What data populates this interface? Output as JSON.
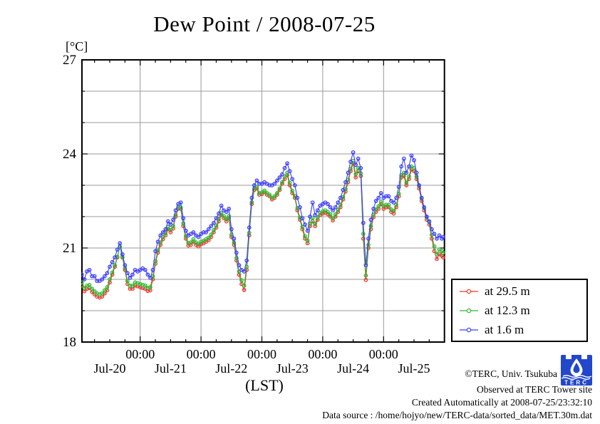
{
  "title": "Dew Point / 2008-07-25",
  "y_axis": {
    "unit_label": "[°C]"
  },
  "x_axis": {
    "label": "(LST)"
  },
  "legend": {
    "items": [
      {
        "label": "at 29.5 m",
        "color": "#e8372c"
      },
      {
        "label": "at 12.3 m",
        "color": "#2eb82e"
      },
      {
        "label": "at 1.6 m",
        "color": "#3c3cff"
      }
    ]
  },
  "footer": {
    "copyright": "©TERC, Univ. Tsukuba",
    "observed": "Observed at TERC Tower site",
    "created": "Created Automatically at 2008-07-25/23:32:10",
    "datasource": "Data source : /home/hojyo/new/TERC-data/sorted_data/MET.30m.dat",
    "logo_text": "TERC"
  },
  "chart_data": {
    "type": "line",
    "title": "Dew Point / 2008-07-25",
    "xlabel": "(LST)",
    "ylabel": "[°C]",
    "ylim": [
      18,
      27
    ],
    "y_ticks_labeled": [
      18,
      21,
      24,
      27
    ],
    "y_grid_step": 1,
    "x_range_hours": [
      1,
      144
    ],
    "x_minor_tick_hours": 6,
    "boundary_tick_label": "00:00",
    "day_labels": [
      "Jul-20",
      "Jul-21",
      "Jul-22",
      "Jul-23",
      "Jul-24",
      "Jul-25"
    ],
    "grid": true,
    "legend_position": "outside-right-bottom",
    "x_hours": [
      1,
      2,
      3,
      4,
      5,
      6,
      7,
      8,
      9,
      10,
      11,
      12,
      13,
      14,
      15,
      16,
      17,
      18,
      19,
      20,
      21,
      22,
      23,
      24,
      25,
      26,
      27,
      28,
      29,
      30,
      31,
      32,
      33,
      34,
      35,
      36,
      37,
      38,
      39,
      40,
      41,
      42,
      43,
      44,
      45,
      46,
      47,
      48,
      49,
      50,
      51,
      52,
      53,
      54,
      55,
      56,
      57,
      58,
      59,
      60,
      61,
      62,
      63,
      64,
      65,
      66,
      67,
      68,
      69,
      70,
      71,
      72,
      73,
      74,
      75,
      76,
      77,
      78,
      79,
      80,
      81,
      82,
      83,
      84,
      85,
      86,
      87,
      88,
      89,
      90,
      91,
      92,
      93,
      94,
      95,
      96,
      97,
      98,
      99,
      100,
      101,
      102,
      103,
      104,
      105,
      106,
      107,
      108,
      109,
      110,
      111,
      112,
      113,
      114,
      115,
      116,
      117,
      118,
      119,
      120,
      121,
      122,
      123,
      124,
      125,
      126,
      127,
      128,
      129,
      130,
      131,
      132,
      133,
      134,
      135,
      136,
      137,
      138,
      139,
      140,
      141,
      142,
      143,
      143.5
    ],
    "series": [
      {
        "name": "at 29.5 m",
        "height_m": 29.5,
        "color": "#e8372c",
        "values": [
          19.8,
          19.62,
          19.7,
          19.72,
          19.6,
          19.52,
          19.45,
          19.42,
          19.45,
          19.55,
          19.65,
          19.9,
          20.15,
          20.4,
          20.7,
          21.05,
          20.7,
          20.3,
          19.85,
          19.7,
          19.7,
          19.8,
          19.78,
          19.75,
          19.72,
          19.7,
          19.63,
          19.65,
          20.0,
          20.5,
          20.85,
          21.1,
          21.28,
          21.4,
          21.6,
          21.5,
          21.62,
          22.0,
          22.25,
          22.25,
          21.7,
          21.3,
          21.08,
          21.1,
          21.2,
          21.1,
          21.05,
          21.12,
          21.15,
          21.2,
          21.25,
          21.35,
          21.5,
          21.65,
          21.85,
          22.05,
          21.95,
          21.85,
          21.95,
          21.35,
          21.1,
          20.6,
          20.15,
          19.85,
          19.66,
          20.3,
          21.4,
          22.4,
          22.85,
          22.9,
          22.7,
          22.72,
          22.78,
          22.7,
          22.65,
          22.55,
          22.6,
          22.7,
          22.85,
          23.05,
          23.2,
          23.32,
          23.0,
          22.75,
          22.6,
          22.2,
          21.9,
          21.6,
          21.3,
          21.15,
          21.7,
          21.85,
          21.7,
          21.9,
          22.05,
          22.1,
          22.12,
          22.08,
          22.0,
          21.88,
          22.0,
          22.15,
          22.3,
          22.55,
          22.8,
          23.1,
          23.45,
          23.7,
          23.25,
          23.45,
          23.3,
          21.3,
          19.98,
          21.0,
          21.6,
          21.98,
          22.15,
          22.25,
          22.4,
          22.25,
          22.3,
          22.3,
          22.15,
          22.1,
          22.3,
          22.65,
          23.25,
          23.3,
          23.0,
          23.2,
          23.5,
          23.45,
          23.2,
          22.9,
          22.5,
          22.2,
          21.9,
          21.75,
          21.3,
          20.9,
          20.65,
          20.8,
          20.75,
          20.7
        ]
      },
      {
        "name": "at 12.3 m",
        "height_m": 12.3,
        "color": "#2eb82e",
        "values": [
          19.9,
          19.72,
          19.8,
          19.82,
          19.7,
          19.62,
          19.55,
          19.52,
          19.55,
          19.65,
          19.75,
          20.0,
          20.22,
          20.45,
          20.72,
          21.05,
          20.72,
          20.35,
          19.95,
          19.8,
          19.8,
          19.9,
          19.88,
          19.85,
          19.82,
          19.8,
          19.73,
          19.75,
          20.1,
          20.58,
          20.92,
          21.18,
          21.35,
          21.47,
          21.67,
          21.57,
          21.7,
          22.05,
          22.3,
          22.3,
          21.78,
          21.38,
          21.16,
          21.18,
          21.28,
          21.18,
          21.13,
          21.2,
          21.23,
          21.28,
          21.33,
          21.43,
          21.57,
          21.72,
          21.92,
          22.12,
          22.02,
          21.92,
          22.02,
          21.42,
          21.17,
          20.68,
          20.25,
          19.97,
          19.8,
          20.4,
          21.48,
          22.46,
          22.9,
          22.95,
          22.75,
          22.77,
          22.83,
          22.75,
          22.7,
          22.6,
          22.65,
          22.75,
          22.9,
          23.1,
          23.28,
          23.4,
          23.08,
          22.82,
          22.66,
          22.27,
          21.97,
          21.67,
          21.38,
          21.23,
          21.78,
          21.95,
          21.78,
          21.98,
          22.12,
          22.17,
          22.2,
          22.15,
          22.07,
          21.95,
          22.07,
          22.22,
          22.38,
          22.62,
          22.88,
          23.18,
          23.52,
          23.78,
          23.35,
          23.55,
          23.38,
          21.45,
          20.12,
          21.1,
          21.7,
          22.06,
          22.23,
          22.33,
          22.48,
          22.33,
          22.38,
          22.38,
          22.23,
          22.18,
          22.38,
          22.73,
          23.32,
          23.4,
          23.08,
          23.28,
          23.6,
          23.55,
          23.28,
          22.98,
          22.58,
          22.28,
          21.98,
          21.83,
          21.42,
          21.05,
          20.8,
          20.95,
          20.9,
          20.85
        ]
      },
      {
        "name": "at 1.6 m",
        "height_m": 1.6,
        "color": "#3c3cff",
        "values": [
          20.15,
          20.0,
          20.25,
          20.3,
          20.1,
          20.1,
          19.95,
          19.95,
          20.0,
          20.1,
          20.2,
          20.4,
          20.55,
          20.7,
          20.95,
          21.15,
          20.8,
          20.45,
          20.2,
          20.05,
          20.15,
          20.3,
          20.25,
          20.3,
          20.35,
          20.3,
          20.15,
          20.05,
          20.3,
          20.9,
          21.2,
          21.4,
          21.5,
          21.6,
          21.85,
          21.75,
          21.9,
          22.2,
          22.4,
          22.45,
          21.95,
          21.55,
          21.4,
          21.45,
          21.5,
          21.4,
          21.35,
          21.45,
          21.5,
          21.5,
          21.6,
          21.7,
          21.8,
          21.95,
          22.1,
          22.35,
          22.2,
          22.15,
          22.25,
          21.6,
          21.3,
          20.85,
          20.45,
          20.3,
          20.25,
          20.6,
          21.65,
          22.6,
          23.0,
          23.15,
          23.05,
          23.05,
          23.1,
          23.05,
          23.0,
          23.0,
          23.05,
          23.15,
          23.25,
          23.35,
          23.55,
          23.7,
          23.45,
          23.2,
          23.0,
          22.6,
          22.3,
          21.95,
          21.75,
          21.55,
          22.0,
          22.45,
          22.05,
          22.2,
          22.35,
          22.4,
          22.45,
          22.4,
          22.3,
          22.2,
          22.3,
          22.45,
          22.6,
          22.85,
          23.1,
          23.4,
          23.75,
          24.05,
          23.65,
          23.85,
          23.55,
          21.8,
          20.45,
          21.3,
          21.9,
          22.25,
          22.5,
          22.6,
          22.75,
          22.6,
          22.65,
          22.65,
          22.5,
          22.45,
          22.6,
          22.95,
          23.6,
          23.85,
          23.4,
          23.6,
          23.95,
          23.8,
          23.4,
          23.0,
          22.6,
          22.3,
          22.0,
          21.85,
          21.6,
          21.45,
          21.3,
          21.4,
          21.3,
          21.35
        ]
      }
    ]
  }
}
